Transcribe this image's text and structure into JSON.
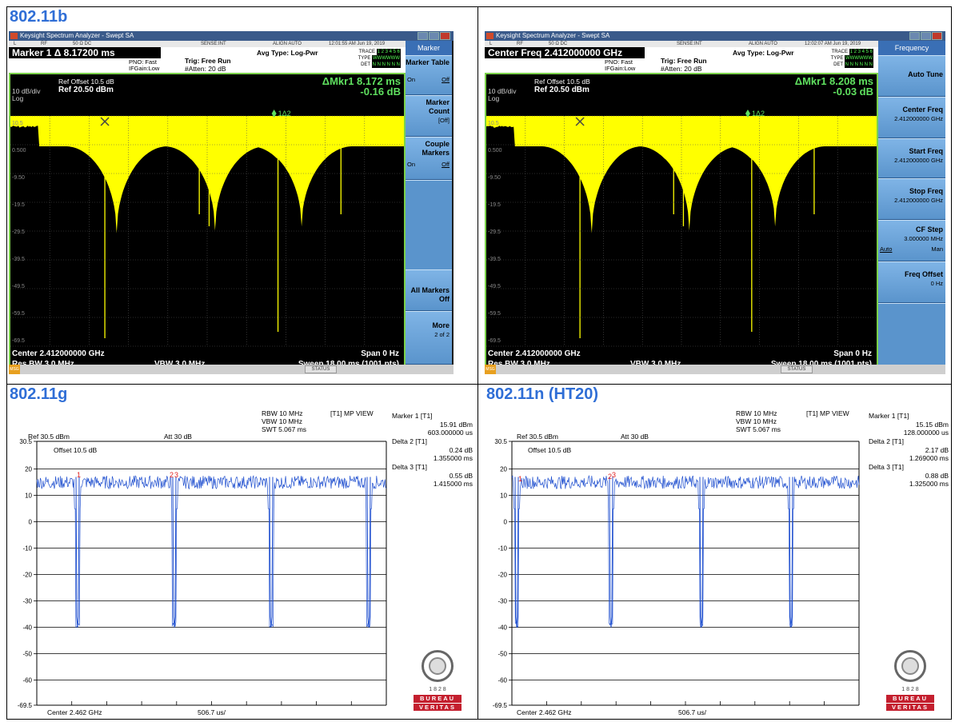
{
  "panels": {
    "b": {
      "title": "802.11b"
    },
    "g": {
      "title": "802.11g"
    },
    "n": {
      "title": "802.11n (HT20)"
    }
  },
  "ks": {
    "window_title": "Keysight Spectrum Analyzer - Swept SA",
    "r1": {
      "l": "L",
      "rf": "RF",
      "ohm": "50 Ω  DC",
      "sense": "SENSE:INT",
      "align": "ALIGN AUTO"
    },
    "pno": "PNO: Fast",
    "ifgain": "IFGain:Low",
    "trig": "Trig: Free Run",
    "atten": "#Atten: 20 dB",
    "avg": "Avg Type: Log-Pwr",
    "trace_label": "TRACE",
    "type_label": "TYPE",
    "det_label": "DET",
    "trace_val": "1 2 3 4 5 6",
    "type_val": "WWWWWW",
    "det_val": "N N N N N N",
    "ref_offset": "Ref Offset 10.5 dB",
    "ref_level": "Ref 20.50 dBm",
    "scale": "10 dB/div",
    "log": "Log",
    "y_ticks": [
      "10.5",
      "0.500",
      "-9.50",
      "-19.5",
      "-29.5",
      "-39.5",
      "-49.5",
      "-59.5",
      "-69.5"
    ],
    "center": "Center 2.412000000 GHz",
    "span": "Span 0 Hz",
    "rbw": "Res BW 3.0 MHz",
    "vbw": "VBW 3.0 MHz",
    "sweep": "Sweep  18.00 ms (1001 pts)",
    "status": "STATUS",
    "msg": "MSG",
    "delta_marker": "1Δ2",
    "left": {
      "time": "12:01:55 AM Jun 19, 2019",
      "marker_line": "Marker 1 Δ 8.17200 ms",
      "dmkr_time": "ΔMkr1 8.172 ms",
      "dmkr_db": "-0.16 dB",
      "menu_title": "Marker",
      "buttons": {
        "table": "Marker Table",
        "on": "On",
        "off": "Off",
        "count": "Marker Count",
        "count_sub": "[Off]",
        "couple": "Couple",
        "couple2": "Markers",
        "all_off": "All Markers Off",
        "more": "More",
        "more_sub": "2 of 2"
      }
    },
    "right": {
      "time": "12:02:07 AM Jun 19, 2019",
      "marker_line": "Center Freq 2.412000000 GHz",
      "dmkr_time": "ΔMkr1 8.208 ms",
      "dmkr_db": "-0.03 dB",
      "menu_title": "Frequency",
      "buttons": {
        "auto_tune": "Auto Tune",
        "center_freq": "Center Freq",
        "center_val": "2.412000000 GHz",
        "start_freq": "Start Freq",
        "start_val": "2.412000000 GHz",
        "stop_freq": "Stop Freq",
        "stop_val": "2.412000000 GHz",
        "cf_step": "CF Step",
        "cf_val": "3.000000 MHz",
        "auto": "Auto",
        "man": "Man",
        "freq_offset": "Freq Offset",
        "freq_offset_val": "0 Hz"
      }
    }
  },
  "rs": {
    "rbw": "RBW 10 MHz",
    "vbw": "VBW 10 MHz",
    "swt": "SWT 5.067 ms",
    "mode": "[T1] MP VIEW",
    "ref": "Ref 30.5 dBm",
    "att": "Att  30 dB",
    "offset": "Offset 10.5 dB",
    "y_ticks": [
      "30.5",
      "20",
      "10",
      "0",
      "-10",
      "-20",
      "-30",
      "-40",
      "-50",
      "-60",
      "-69.5"
    ],
    "center": "Center 2.462 GHz",
    "div": "506.7 us/",
    "g": {
      "m1": "Marker 1 [T1]",
      "m1_val": "15.91 dBm",
      "m1_t": "603.000000 us",
      "d2": "Delta 2 [T1]",
      "d2_val": "0.24 dB",
      "d2_t": "1.355000 ms",
      "d3": "Delta 3 [T1]",
      "d3_val": "0.55 dB",
      "d3_t": "1.415000 ms"
    },
    "n": {
      "m1": "Marker 1 [T1]",
      "m1_val": "15.15 dBm",
      "m1_t": "128.000000 us",
      "d2": "Delta 2 [T1]",
      "d2_val": "2.17 dB",
      "d2_t": "1.269000 ms",
      "d3": "Delta 3 [T1]",
      "d3_val": "0.88 dB",
      "d3_t": "1.325000 ms"
    }
  },
  "bv": {
    "year": "1 8 2 8",
    "b1": "BUREAU",
    "b2": "VERITAS"
  },
  "colors": {
    "title": "#2f6ed6",
    "trace_yellow": "#ffff00",
    "trace_blue": "#1f4fcf",
    "grid_green": "#7bd14b",
    "menu_blue": "#5a94cc",
    "marker_red": "#e02020"
  }
}
